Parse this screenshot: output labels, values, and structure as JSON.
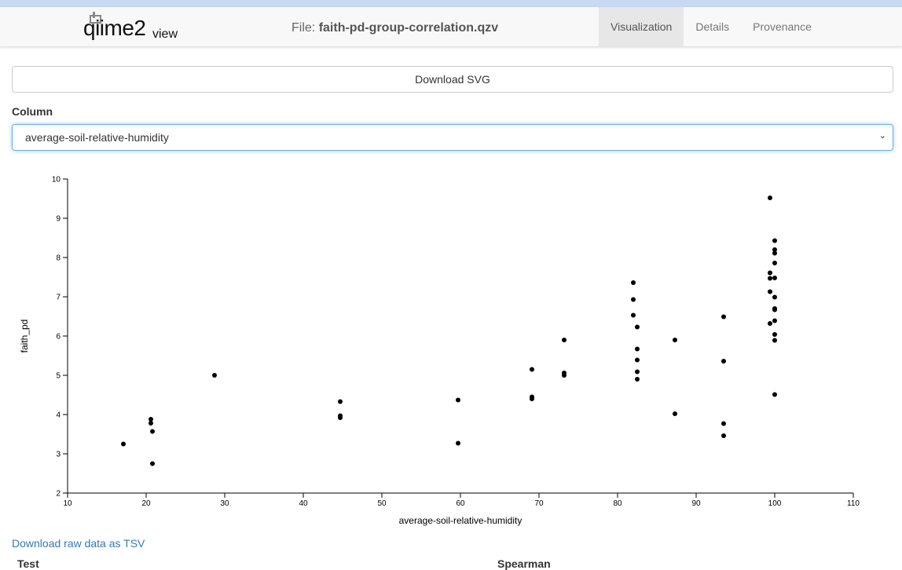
{
  "header": {
    "logo_text": "qiime2",
    "logo_sub": "view",
    "file_prefix": "File:",
    "file_name": "faith-pd-group-correlation.qzv",
    "tabs": [
      {
        "label": "Visualization",
        "active": true
      },
      {
        "label": "Details",
        "active": false
      },
      {
        "label": "Provenance",
        "active": false
      }
    ]
  },
  "controls": {
    "download_svg_label": "Download SVG",
    "column_label": "Column",
    "column_selected": "average-soil-relative-humidity"
  },
  "chart_data": {
    "type": "scatter",
    "xlabel": "average-soil-relative-humidity",
    "ylabel": "faith_pd",
    "xlim": [
      10,
      110
    ],
    "ylim": [
      2,
      10
    ],
    "x_ticks": [
      10,
      20,
      30,
      40,
      50,
      60,
      70,
      80,
      90,
      100,
      110
    ],
    "y_ticks": [
      2,
      3,
      4,
      5,
      6,
      7,
      8,
      9,
      10
    ],
    "grid": false,
    "point_color": "#000000",
    "points": [
      [
        17.1,
        3.25
      ],
      [
        20.6,
        3.88
      ],
      [
        20.6,
        3.78
      ],
      [
        20.8,
        3.57
      ],
      [
        20.8,
        2.75
      ],
      [
        28.7,
        5.0
      ],
      [
        44.7,
        4.33
      ],
      [
        44.7,
        3.97
      ],
      [
        44.7,
        3.92
      ],
      [
        59.7,
        4.37
      ],
      [
        59.7,
        3.27
      ],
      [
        69.1,
        5.15
      ],
      [
        69.1,
        4.45
      ],
      [
        69.1,
        4.4
      ],
      [
        73.2,
        5.9
      ],
      [
        73.2,
        5.06
      ],
      [
        73.2,
        5.0
      ],
      [
        82.0,
        7.36
      ],
      [
        82.0,
        6.93
      ],
      [
        82.0,
        6.53
      ],
      [
        82.5,
        6.23
      ],
      [
        82.5,
        5.67
      ],
      [
        82.5,
        5.39
      ],
      [
        82.5,
        5.09
      ],
      [
        82.5,
        4.9
      ],
      [
        87.3,
        5.9
      ],
      [
        87.3,
        4.02
      ],
      [
        93.5,
        6.49
      ],
      [
        93.5,
        5.36
      ],
      [
        93.5,
        3.77
      ],
      [
        93.5,
        3.46
      ],
      [
        99.4,
        9.52
      ],
      [
        100.0,
        8.43
      ],
      [
        100.0,
        8.2
      ],
      [
        100.0,
        8.11
      ],
      [
        100.0,
        7.86
      ],
      [
        99.4,
        7.61
      ],
      [
        99.4,
        7.47
      ],
      [
        100.0,
        7.48
      ],
      [
        99.4,
        7.13
      ],
      [
        100.0,
        6.99
      ],
      [
        100.0,
        6.7
      ],
      [
        100.0,
        6.67
      ],
      [
        100.0,
        6.39
      ],
      [
        99.4,
        6.32
      ],
      [
        100.0,
        6.04
      ],
      [
        100.0,
        5.89
      ],
      [
        100.0,
        4.51
      ]
    ]
  },
  "footer": {
    "tsv_link": "Download raw data as TSV",
    "stats_col1": "Test",
    "stats_col2": "Spearman"
  }
}
